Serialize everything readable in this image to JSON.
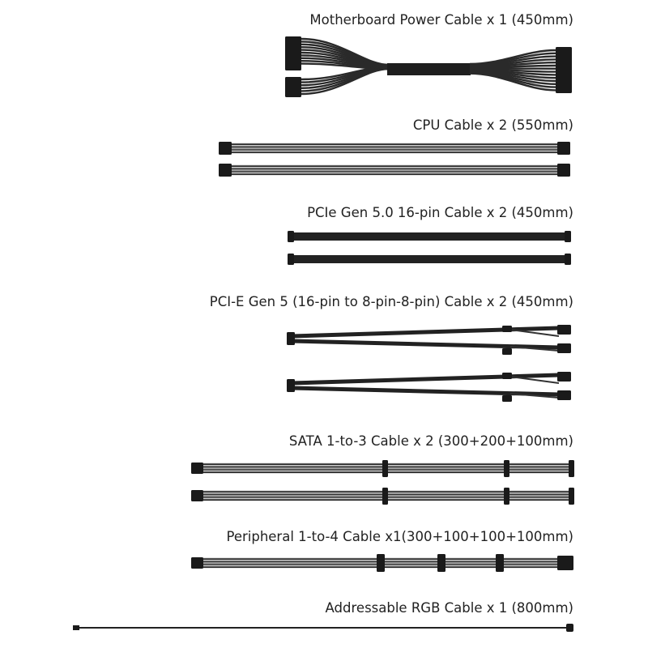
{
  "cables": [
    {
      "label": "Motherboard Power  Cable x 1 (450mm)"
    },
    {
      "label": "CPU Cable x 2 (550mm)"
    },
    {
      "label": "PCIe Gen 5.0 16-pin Cable x 2 (450mm)"
    },
    {
      "label": "PCI-E Gen 5 (16-pin to 8-pin-8-pin) Cable x 2 (450mm)"
    },
    {
      "label": "SATA 1-to-3 Cable x 2 (300+200+100mm)"
    },
    {
      "label": "Peripheral 1-to-4 Cable x1(300+100+100+100mm)"
    },
    {
      "label": "Addressable RGB Cable x 1 (800mm)"
    }
  ],
  "colors": {
    "cable": "#2a2a2a",
    "sleeve_highlight": "#9a9a9a",
    "text": "#222222"
  }
}
